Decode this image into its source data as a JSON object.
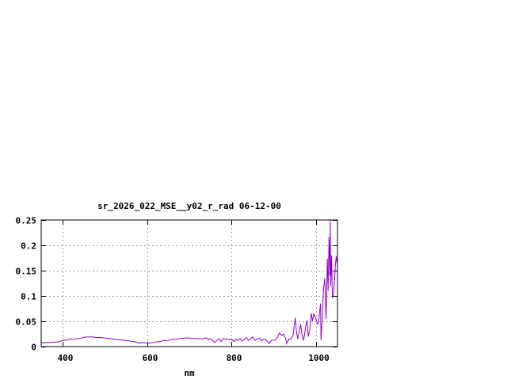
{
  "chart_data": {
    "type": "line",
    "title": "sr_2026_022_MSE__y02_r_rad 06-12-00",
    "xlabel": "nm",
    "ylabel": "",
    "xlim": [
      350,
      1050
    ],
    "ylim": [
      0,
      0.25
    ],
    "x_ticks": [
      400,
      600,
      800,
      1000
    ],
    "x_tick_labels": [
      "400",
      "600",
      "800",
      "1000"
    ],
    "y_ticks": [
      0,
      0.05,
      0.1,
      0.15,
      0.2,
      0.25
    ],
    "y_tick_labels": [
      "0",
      "0.05",
      "0.1",
      "0.15",
      "0.2",
      "0.25"
    ],
    "grid": true,
    "line_color": "#9400d3",
    "series": [
      {
        "x": [
          350,
          355,
          360,
          370,
          380,
          390,
          400,
          410,
          420,
          430,
          440,
          450,
          460,
          470,
          480,
          490,
          500,
          510,
          520,
          530,
          540,
          550,
          560,
          570,
          580,
          590,
          600,
          610,
          620,
          630,
          640,
          650,
          660,
          670,
          680,
          690,
          700,
          710,
          720,
          730,
          740,
          745,
          750,
          755,
          760,
          765,
          770,
          775,
          780,
          790,
          800,
          805,
          810,
          815,
          820,
          825,
          830,
          835,
          840,
          845,
          850,
          855,
          860,
          865,
          870,
          875,
          880,
          885,
          888,
          893,
          898,
          903,
          908,
          913,
          918,
          923,
          928,
          930,
          935,
          940,
          945,
          950,
          953,
          956,
          960,
          963,
          966,
          970,
          974,
          978,
          981,
          984,
          988,
          991,
          994,
          997,
          1000,
          1003,
          1005,
          1008,
          1010,
          1011,
          1014,
          1017,
          1020,
          1023,
          1026,
          1028,
          1030,
          1032,
          1033,
          1034,
          1036,
          1038,
          1040,
          1043,
          1045,
          1047,
          1049
        ],
        "y": [
          0.009,
          0.007,
          0.008,
          0.008,
          0.009,
          0.009,
          0.012,
          0.013,
          0.015,
          0.015,
          0.016,
          0.018,
          0.019,
          0.019,
          0.018,
          0.018,
          0.017,
          0.016,
          0.015,
          0.014,
          0.013,
          0.012,
          0.011,
          0.01,
          0.007,
          0.008,
          0.007,
          0.007,
          0.009,
          0.01,
          0.012,
          0.012,
          0.014,
          0.015,
          0.016,
          0.017,
          0.017,
          0.016,
          0.016,
          0.015,
          0.017,
          0.014,
          0.016,
          0.012,
          0.008,
          0.012,
          0.016,
          0.01,
          0.016,
          0.014,
          0.015,
          0.01,
          0.014,
          0.012,
          0.016,
          0.011,
          0.014,
          0.018,
          0.012,
          0.016,
          0.019,
          0.012,
          0.015,
          0.017,
          0.011,
          0.015,
          0.014,
          0.01,
          0.006,
          0.011,
          0.013,
          0.013,
          0.018,
          0.027,
          0.022,
          0.025,
          0.015,
          0.006,
          0.015,
          0.015,
          0.022,
          0.057,
          0.03,
          0.015,
          0.03,
          0.044,
          0.025,
          0.012,
          0.035,
          0.052,
          0.02,
          0.03,
          0.066,
          0.05,
          0.065,
          0.06,
          0.052,
          0.045,
          0.048,
          0.07,
          0.085,
          0.012,
          0.06,
          0.114,
          0.135,
          0.054,
          0.174,
          0.11,
          0.216,
          0.14,
          0.25,
          0.12,
          0.18,
          0.096,
          0.1,
          0.13,
          0.16,
          0.179,
          0.165
        ]
      }
    ]
  }
}
